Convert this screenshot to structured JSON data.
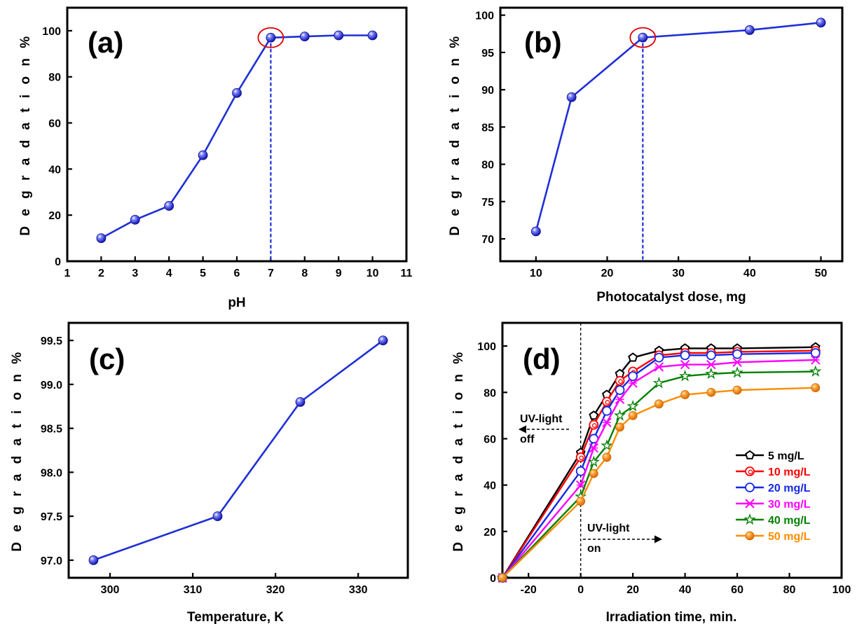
{
  "chart_data": [
    {
      "panel": "(a)",
      "type": "line",
      "xlabel": "pH",
      "ylabel": "D e g r a d a t i o n %",
      "xlim": [
        1,
        11
      ],
      "ylim": [
        0,
        110
      ],
      "xticks": [
        1,
        2,
        3,
        4,
        5,
        6,
        7,
        8,
        9,
        10,
        11
      ],
      "yticks": [
        0,
        20,
        40,
        60,
        80,
        100
      ],
      "x": [
        2,
        3,
        4,
        5,
        6,
        7,
        8,
        9,
        10
      ],
      "series": [
        {
          "color": "#1f2fd6",
          "marker": "ball",
          "values": [
            10,
            18,
            24,
            46,
            73,
            97,
            97.5,
            98,
            98
          ]
        }
      ],
      "highlight": {
        "x": 7,
        "y": 97
      },
      "dropline": {
        "x": 7
      }
    },
    {
      "panel": "(b)",
      "type": "line",
      "xlabel": "Photocatalyst dose, mg",
      "ylabel": "D e g r a d a t i o n %",
      "xlim": [
        5,
        53
      ],
      "ylim": [
        67,
        101
      ],
      "xticks": [
        10,
        20,
        30,
        40,
        50
      ],
      "yticks": [
        70,
        75,
        80,
        85,
        90,
        95,
        100
      ],
      "x": [
        10,
        15,
        25,
        40,
        50
      ],
      "series": [
        {
          "color": "#1f2fd6",
          "marker": "ball",
          "values": [
            71,
            89,
            97,
            98,
            99
          ]
        }
      ],
      "highlight": {
        "x": 25,
        "y": 97
      },
      "dropline": {
        "x": 25
      }
    },
    {
      "panel": "(c)",
      "type": "line",
      "xlabel": "Temperature, K",
      "ylabel": "D e g r a d a t i o n %",
      "xlim": [
        295,
        336
      ],
      "ylim": [
        96.8,
        99.7
      ],
      "xticks": [
        300,
        310,
        320,
        330
      ],
      "yticks": [
        97.0,
        97.5,
        98.0,
        98.5,
        99.0,
        99.5
      ],
      "ytick_decimals": 1,
      "x": [
        298,
        313,
        323,
        333
      ],
      "series": [
        {
          "color": "#1f2fd6",
          "marker": "ball",
          "values": [
            97.0,
            97.5,
            98.8,
            99.5
          ]
        }
      ]
    },
    {
      "panel": "(d)",
      "type": "line",
      "xlabel": "Irradiation time, min.",
      "ylabel": "D e g r a d a t i o n %",
      "xlim": [
        -30,
        100
      ],
      "ylim": [
        0,
        110
      ],
      "xticks": [
        -20,
        0,
        20,
        40,
        60,
        80,
        100
      ],
      "yticks": [
        0,
        20,
        40,
        60,
        80,
        100
      ],
      "x": [
        -30,
        0,
        5,
        10,
        15,
        20,
        30,
        40,
        50,
        60,
        90
      ],
      "series": [
        {
          "name": "5 mg/L",
          "color": "#000000",
          "marker": "pentagon",
          "values": [
            0,
            54,
            70,
            79,
            88,
            95,
            98,
            99,
            99,
            99,
            99.5
          ]
        },
        {
          "name": "10 mg/L",
          "color": "#ff0000",
          "marker": "dotcircle",
          "values": [
            0,
            52,
            66,
            76,
            85,
            89,
            96,
            97,
            97,
            97.5,
            98
          ]
        },
        {
          "name": "20 mg/L",
          "color": "#1428e6",
          "marker": "circle",
          "values": [
            0,
            46,
            60,
            72,
            81,
            87,
            95,
            96,
            96,
            96.5,
            97
          ]
        },
        {
          "name": "30 mg/L",
          "color": "#ff00ff",
          "marker": "xstar",
          "values": [
            0,
            40,
            56,
            67,
            77,
            84,
            91,
            92,
            92,
            93,
            94
          ]
        },
        {
          "name": "40 mg/L",
          "color": "#008000",
          "marker": "star",
          "values": [
            0,
            35,
            50,
            57,
            70,
            74,
            84,
            87,
            88,
            88.5,
            89
          ]
        },
        {
          "name": "50 mg/L",
          "color": "#ff8c00",
          "marker": "ball",
          "values": [
            0,
            33,
            45,
            52,
            65,
            70,
            75,
            79,
            80,
            81,
            82
          ]
        }
      ],
      "annotations": {
        "off_line1": "UV-light",
        "off_line2": "off",
        "on_line1": "UV-light",
        "on_line2": "on"
      },
      "dropline": {
        "x": 0
      },
      "legend_position": "right"
    }
  ]
}
